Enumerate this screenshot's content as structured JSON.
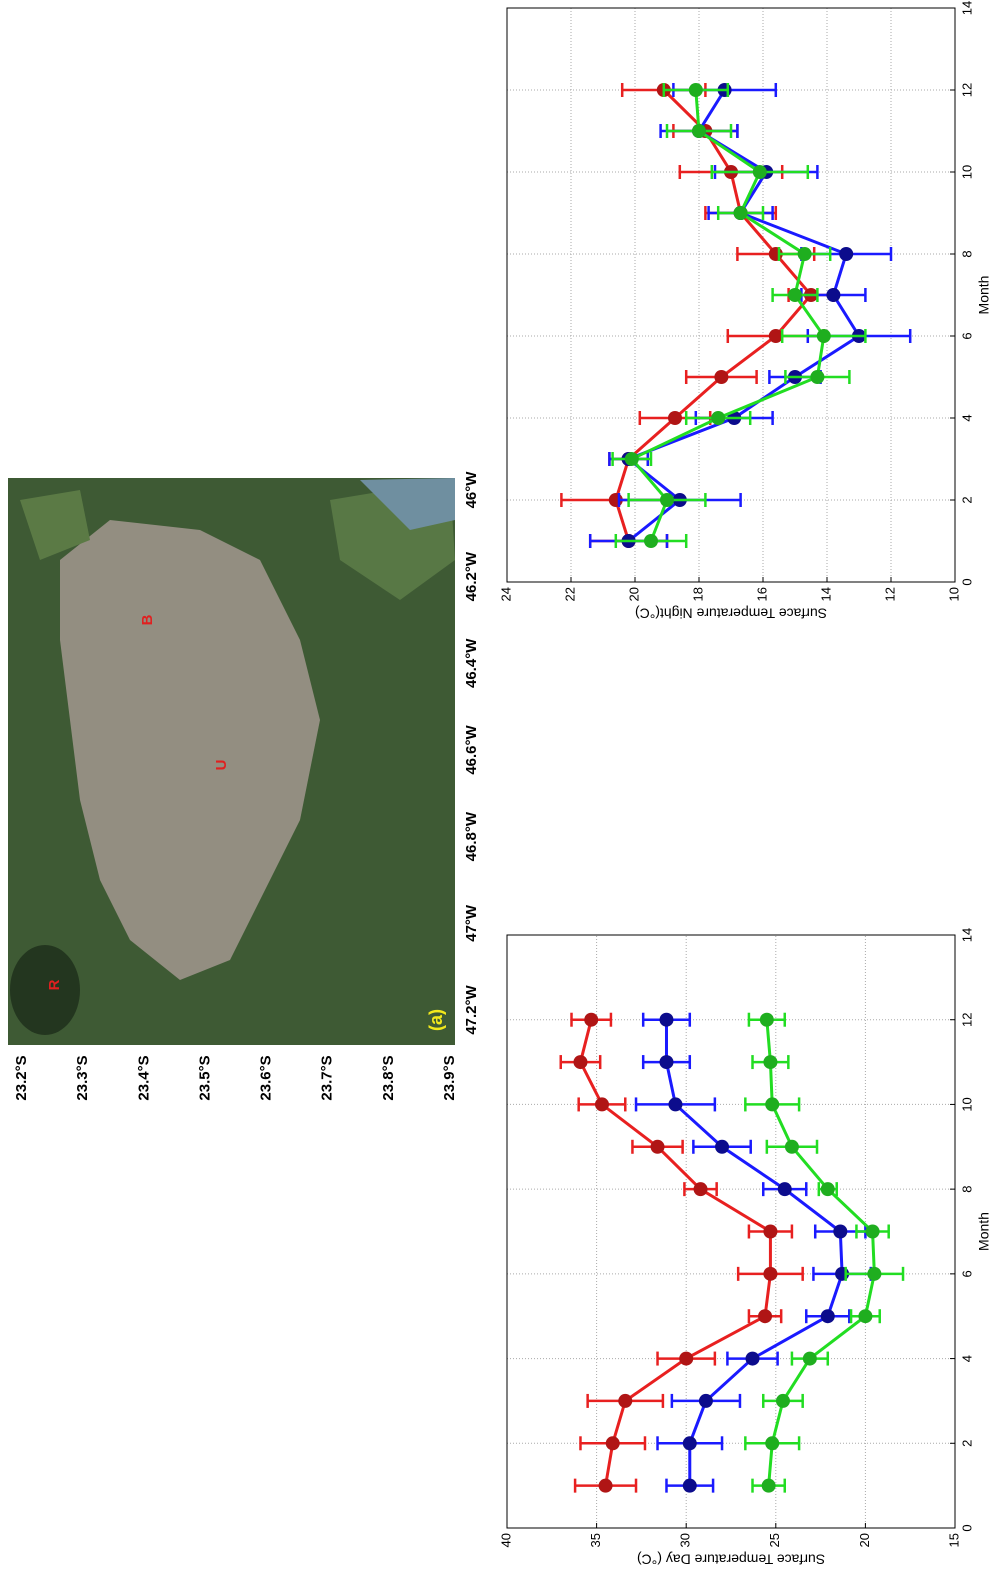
{
  "map": {
    "lat_labels": [
      "23.2°S",
      "23.3°S",
      "23.4°S",
      "23.5°S",
      "23.6°S",
      "23.7°S",
      "23.8°S",
      "23.9°S"
    ],
    "lon_labels": [
      "47.2°W",
      "47°W",
      "46.8°W",
      "46.6°W",
      "46.4°W",
      "46.2°W",
      "46°W"
    ],
    "markers": [
      "R",
      "U",
      "B"
    ],
    "panel_label": "(a)"
  },
  "chart_data": [
    {
      "type": "line",
      "xlabel": "Month",
      "ylabel": "Surface Temperature Day (°C)",
      "x": [
        1,
        2,
        3,
        4,
        5,
        6,
        7,
        8,
        9,
        10,
        11,
        12
      ],
      "xlim": [
        0,
        14
      ],
      "xticks": [
        0,
        2,
        4,
        6,
        8,
        10,
        12,
        14
      ],
      "ylim": [
        15,
        40
      ],
      "yticks": [
        15,
        20,
        25,
        30,
        35,
        40
      ],
      "grid": true,
      "series": [
        {
          "color": "#e82020",
          "marker_color": "#b01515",
          "values": [
            34.5,
            34.1,
            33.4,
            30.0,
            25.6,
            25.3,
            25.3,
            29.2,
            31.6,
            34.7,
            35.9,
            35.3
          ],
          "errors": [
            1.7,
            1.8,
            2.1,
            1.6,
            0.9,
            1.8,
            1.2,
            0.9,
            1.4,
            1.3,
            1.1,
            1.1
          ]
        },
        {
          "color": "#1a1aff",
          "marker_color": "#0c0c8c",
          "values": [
            29.8,
            29.8,
            28.9,
            26.3,
            22.1,
            21.3,
            21.4,
            24.5,
            28.0,
            30.6,
            31.1,
            31.1
          ],
          "errors": [
            1.3,
            1.8,
            1.9,
            1.4,
            1.2,
            1.6,
            1.4,
            1.2,
            1.6,
            2.2,
            1.3,
            1.3
          ]
        },
        {
          "color": "#22dd22",
          "marker_color": "#1fae1f",
          "values": [
            25.4,
            25.2,
            24.6,
            23.1,
            20.0,
            19.5,
            19.6,
            22.1,
            24.1,
            25.2,
            25.3,
            25.5
          ],
          "errors": [
            0.9,
            1.5,
            1.1,
            1.0,
            0.8,
            1.6,
            0.9,
            0.5,
            1.4,
            1.5,
            1.0,
            1.0
          ]
        }
      ]
    },
    {
      "type": "line",
      "xlabel": "Month",
      "ylabel": "Surface Temperature Night(°C)",
      "x": [
        1,
        2,
        3,
        4,
        5,
        6,
        7,
        8,
        9,
        10,
        11,
        12
      ],
      "xlim": [
        0,
        14
      ],
      "xticks": [
        0,
        2,
        4,
        6,
        8,
        10,
        12,
        14
      ],
      "ylim": [
        10,
        24
      ],
      "yticks": [
        10,
        12,
        14,
        16,
        18,
        20,
        22,
        24
      ],
      "grid": true,
      "series": [
        {
          "color": "#e82020",
          "marker_color": "#b01515",
          "values": [
            20.2,
            20.6,
            20.2,
            18.75,
            17.3,
            15.6,
            14.5,
            15.6,
            16.7,
            17.0,
            17.8,
            19.1
          ],
          "errors": [
            1.2,
            1.7,
            0.6,
            1.1,
            1.1,
            1.5,
            0.7,
            1.2,
            1.1,
            1.6,
            1.0,
            1.3
          ]
        },
        {
          "color": "#1a1aff",
          "marker_color": "#0c0c8c",
          "values": [
            20.2,
            18.6,
            20.2,
            16.9,
            15.0,
            13.0,
            13.8,
            13.4,
            16.7,
            15.9,
            18.0,
            17.2
          ],
          "errors": [
            1.2,
            1.9,
            0.6,
            1.2,
            0.8,
            1.6,
            1.0,
            1.4,
            1.0,
            1.6,
            1.2,
            1.6
          ]
        },
        {
          "color": "#22dd22",
          "marker_color": "#1fae1f",
          "values": [
            19.5,
            19.0,
            20.1,
            17.4,
            14.3,
            14.1,
            15.0,
            14.7,
            16.7,
            16.1,
            18.0,
            18.1
          ],
          "errors": [
            1.1,
            1.2,
            0.6,
            1.0,
            1.0,
            1.3,
            0.7,
            0.8,
            0.7,
            1.5,
            1.0,
            1.0
          ]
        }
      ]
    }
  ]
}
